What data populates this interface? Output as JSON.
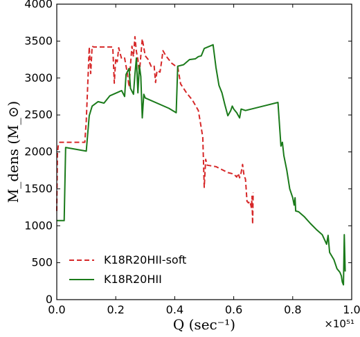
{
  "chart_data": {
    "type": "line",
    "xlabel": "Q (sec⁻¹)",
    "ylabel": "M_dens (M_⊙)",
    "x_multiplier": "×10⁵¹",
    "xlim": [
      0.0,
      1.0
    ],
    "ylim": [
      0,
      4000
    ],
    "xticks": [
      "0.0",
      "0.2",
      "0.4",
      "0.6",
      "0.8",
      "1.0"
    ],
    "yticks": [
      "0",
      "500",
      "1000",
      "1500",
      "2000",
      "2500",
      "3000",
      "3500",
      "4000"
    ],
    "grid": false,
    "legend_position": "lower-left",
    "series": [
      {
        "name": "K18R20HII-soft",
        "color": "#d62728",
        "dash": "dashed",
        "points": [
          [
            0.0,
            1200
          ],
          [
            0.002,
            1960
          ],
          [
            0.005,
            2080
          ],
          [
            0.01,
            2130
          ],
          [
            0.095,
            2130
          ],
          [
            0.1,
            2420
          ],
          [
            0.105,
            2900
          ],
          [
            0.11,
            3420
          ],
          [
            0.115,
            3060
          ],
          [
            0.12,
            3430
          ],
          [
            0.125,
            3420
          ],
          [
            0.19,
            3420
          ],
          [
            0.195,
            2930
          ],
          [
            0.2,
            3270
          ],
          [
            0.205,
            3220
          ],
          [
            0.21,
            3410
          ],
          [
            0.215,
            3330
          ],
          [
            0.22,
            3260
          ],
          [
            0.23,
            3270
          ],
          [
            0.24,
            3050
          ],
          [
            0.245,
            2880
          ],
          [
            0.25,
            3180
          ],
          [
            0.255,
            3430
          ],
          [
            0.26,
            3290
          ],
          [
            0.265,
            3560
          ],
          [
            0.27,
            3360
          ],
          [
            0.275,
            3250
          ],
          [
            0.28,
            3060
          ],
          [
            0.285,
            3300
          ],
          [
            0.29,
            3530
          ],
          [
            0.3,
            3300
          ],
          [
            0.31,
            3250
          ],
          [
            0.32,
            3160
          ],
          [
            0.33,
            3170
          ],
          [
            0.335,
            2940
          ],
          [
            0.34,
            3100
          ],
          [
            0.35,
            3080
          ],
          [
            0.355,
            3210
          ],
          [
            0.36,
            3370
          ],
          [
            0.37,
            3300
          ],
          [
            0.38,
            3250
          ],
          [
            0.39,
            3200
          ],
          [
            0.4,
            3170
          ],
          [
            0.41,
            3150
          ],
          [
            0.42,
            2920
          ],
          [
            0.44,
            2800
          ],
          [
            0.46,
            2700
          ],
          [
            0.48,
            2560
          ],
          [
            0.495,
            2200
          ],
          [
            0.5,
            1520
          ],
          [
            0.505,
            1900
          ],
          [
            0.51,
            1820
          ],
          [
            0.54,
            1800
          ],
          [
            0.56,
            1760
          ],
          [
            0.58,
            1720
          ],
          [
            0.6,
            1700
          ],
          [
            0.61,
            1660
          ],
          [
            0.615,
            1710
          ],
          [
            0.62,
            1650
          ],
          [
            0.625,
            1720
          ],
          [
            0.63,
            1830
          ],
          [
            0.635,
            1680
          ],
          [
            0.64,
            1630
          ],
          [
            0.645,
            1330
          ],
          [
            0.65,
            1310
          ],
          [
            0.655,
            1330
          ],
          [
            0.66,
            1240
          ],
          [
            0.662,
            1400
          ],
          [
            0.664,
            1020
          ],
          [
            0.666,
            1450
          ]
        ]
      },
      {
        "name": "K18R20HII",
        "color": "#1a7a1a",
        "dash": "solid",
        "points": [
          [
            0.0,
            1070
          ],
          [
            0.025,
            1070
          ],
          [
            0.03,
            2060
          ],
          [
            0.1,
            2010
          ],
          [
            0.11,
            2490
          ],
          [
            0.12,
            2620
          ],
          [
            0.14,
            2680
          ],
          [
            0.16,
            2660
          ],
          [
            0.18,
            2760
          ],
          [
            0.22,
            2830
          ],
          [
            0.23,
            2750
          ],
          [
            0.235,
            3050
          ],
          [
            0.245,
            3130
          ],
          [
            0.25,
            2860
          ],
          [
            0.26,
            2780
          ],
          [
            0.265,
            3050
          ],
          [
            0.27,
            3270
          ],
          [
            0.275,
            2800
          ],
          [
            0.28,
            3170
          ],
          [
            0.285,
            3020
          ],
          [
            0.29,
            2460
          ],
          [
            0.295,
            2780
          ],
          [
            0.3,
            2730
          ],
          [
            0.38,
            2590
          ],
          [
            0.405,
            2530
          ],
          [
            0.41,
            3160
          ],
          [
            0.43,
            3180
          ],
          [
            0.45,
            3250
          ],
          [
            0.47,
            3260
          ],
          [
            0.48,
            3290
          ],
          [
            0.49,
            3300
          ],
          [
            0.5,
            3400
          ],
          [
            0.53,
            3450
          ],
          [
            0.54,
            3140
          ],
          [
            0.55,
            2900
          ],
          [
            0.56,
            2800
          ],
          [
            0.57,
            2640
          ],
          [
            0.58,
            2490
          ],
          [
            0.59,
            2560
          ],
          [
            0.595,
            2620
          ],
          [
            0.6,
            2580
          ],
          [
            0.61,
            2530
          ],
          [
            0.62,
            2460
          ],
          [
            0.625,
            2580
          ],
          [
            0.64,
            2560
          ],
          [
            0.75,
            2670
          ],
          [
            0.76,
            2080
          ],
          [
            0.765,
            2130
          ],
          [
            0.77,
            1950
          ],
          [
            0.78,
            1750
          ],
          [
            0.79,
            1500
          ],
          [
            0.8,
            1380
          ],
          [
            0.805,
            1280
          ],
          [
            0.808,
            1380
          ],
          [
            0.81,
            1200
          ],
          [
            0.82,
            1190
          ],
          [
            0.84,
            1120
          ],
          [
            0.86,
            1030
          ],
          [
            0.88,
            950
          ],
          [
            0.9,
            880
          ],
          [
            0.915,
            750
          ],
          [
            0.92,
            870
          ],
          [
            0.925,
            640
          ],
          [
            0.94,
            540
          ],
          [
            0.95,
            420
          ],
          [
            0.96,
            370
          ],
          [
            0.965,
            320
          ],
          [
            0.968,
            240
          ],
          [
            0.972,
            200
          ],
          [
            0.975,
            880
          ],
          [
            0.978,
            380
          ]
        ]
      }
    ]
  }
}
